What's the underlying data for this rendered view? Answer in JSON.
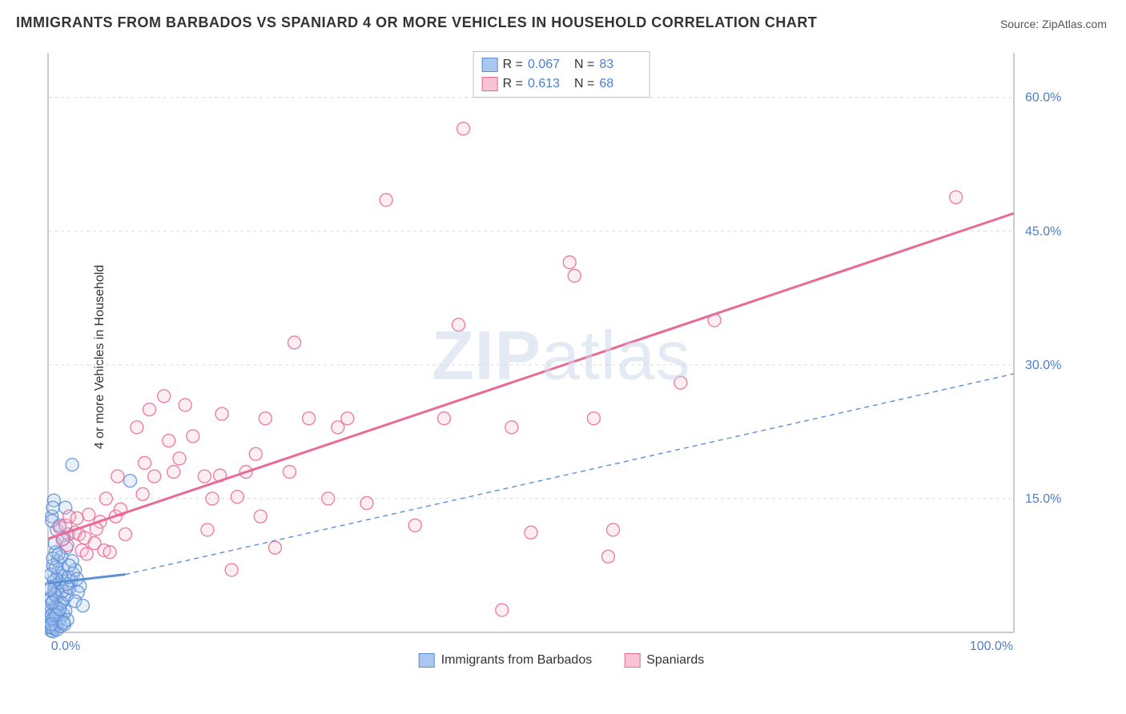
{
  "title": "IMMIGRANTS FROM BARBADOS VS SPANIARD 4 OR MORE VEHICLES IN HOUSEHOLD CORRELATION CHART",
  "source_prefix": "Source: ",
  "source_name": "ZipAtlas.com",
  "ylabel": "4 or more Vehicles in Household",
  "watermark_left": "ZIP",
  "watermark_right": "atlas",
  "chart": {
    "type": "scatter",
    "background_color": "#ffffff",
    "grid_color": "#dcdcdc",
    "axis_color": "#bbbbbb",
    "xlim": [
      0,
      100
    ],
    "ylim": [
      0,
      65
    ],
    "y_ticks": [
      15,
      30,
      45,
      60
    ],
    "y_tick_labels": [
      "15.0%",
      "30.0%",
      "45.0%",
      "60.0%"
    ],
    "x_ticks": [
      0,
      100
    ],
    "x_tick_labels": [
      "0.0%",
      "100.0%"
    ],
    "y_tick_color": "#4d7fc9",
    "x_tick_color": "#4d7fc9",
    "tick_fontsize": 16,
    "marker_radius": 8,
    "marker_fill_opacity": 0.28,
    "marker_stroke_width": 1.4,
    "line_width": 3,
    "dash_pattern": "6 5",
    "series": [
      {
        "name": "Immigrants from Barbados",
        "color": "#5e8fd6",
        "fill": "#a9c7ef",
        "R": "0.067",
        "N": "83",
        "trend_solid": {
          "x1": 0,
          "y1": 5.5,
          "x2": 8,
          "y2": 6.5
        },
        "trend_dashed_ext": {
          "x1": 8,
          "y1": 6.5,
          "x2": 100,
          "y2": 29.0
        },
        "points": [
          [
            0.3,
            0.2
          ],
          [
            0.4,
            0.5
          ],
          [
            0.5,
            1.0
          ],
          [
            0.6,
            1.4
          ],
          [
            0.3,
            1.8
          ],
          [
            0.7,
            2.2
          ],
          [
            0.4,
            2.6
          ],
          [
            0.8,
            3.0
          ],
          [
            0.5,
            3.5
          ],
          [
            0.9,
            4.0
          ],
          [
            0.6,
            4.4
          ],
          [
            1.0,
            4.8
          ],
          [
            0.7,
            5.2
          ],
          [
            1.2,
            5.6
          ],
          [
            0.9,
            6.0
          ],
          [
            1.4,
            6.3
          ],
          [
            1.0,
            6.7
          ],
          [
            1.5,
            7.1
          ],
          [
            0.8,
            0.8
          ],
          [
            1.1,
            1.2
          ],
          [
            1.3,
            1.6
          ],
          [
            0.6,
            0.4
          ],
          [
            1.6,
            2.0
          ],
          [
            1.8,
            2.4
          ],
          [
            1.2,
            3.2
          ],
          [
            1.7,
            3.8
          ],
          [
            2.0,
            4.2
          ],
          [
            1.5,
            4.6
          ],
          [
            2.2,
            5.0
          ],
          [
            1.9,
            5.4
          ],
          [
            2.4,
            5.8
          ],
          [
            2.1,
            6.2
          ],
          [
            2.6,
            6.6
          ],
          [
            2.8,
            7.0
          ],
          [
            0.5,
            7.5
          ],
          [
            1.0,
            8.0
          ],
          [
            1.4,
            8.5
          ],
          [
            0.8,
            9.0
          ],
          [
            1.9,
            9.5
          ],
          [
            0.7,
            10.0
          ],
          [
            1.6,
            10.5
          ],
          [
            2.1,
            11.0
          ],
          [
            0.9,
            11.5
          ],
          [
            1.2,
            12.0
          ],
          [
            2.5,
            8.0
          ],
          [
            0.4,
            13.0
          ],
          [
            1.8,
            14.0
          ],
          [
            0.6,
            14.8
          ],
          [
            2.2,
            7.5
          ],
          [
            3.0,
            6.0
          ],
          [
            3.3,
            5.2
          ],
          [
            3.1,
            4.5
          ],
          [
            2.8,
            3.5
          ],
          [
            3.6,
            3.0
          ],
          [
            0.5,
            0.1
          ],
          [
            0.2,
            0.6
          ],
          [
            0.9,
            0.3
          ],
          [
            1.3,
            0.7
          ],
          [
            1.7,
            0.9
          ],
          [
            0.4,
            2.0
          ],
          [
            2.0,
            1.4
          ],
          [
            0.2,
            5.0
          ],
          [
            0.6,
            5.8
          ],
          [
            0.3,
            6.5
          ],
          [
            0.8,
            7.3
          ],
          [
            0.5,
            8.3
          ],
          [
            1.1,
            8.8
          ],
          [
            0.9,
            2.8
          ],
          [
            0.3,
            3.8
          ],
          [
            1.4,
            3.3
          ],
          [
            0.7,
            4.2
          ],
          [
            0.2,
            4.8
          ],
          [
            1.0,
            2.3
          ],
          [
            0.5,
            1.5
          ],
          [
            0.8,
            1.9
          ],
          [
            1.2,
            2.6
          ],
          [
            0.3,
            0.9
          ],
          [
            1.6,
            1.1
          ],
          [
            0.4,
            3.3
          ],
          [
            2.5,
            18.8
          ],
          [
            8.5,
            17.0
          ],
          [
            0.5,
            14.0
          ],
          [
            0.4,
            12.5
          ]
        ]
      },
      {
        "name": "Spaniards",
        "color": "#e86b94",
        "fill": "#f8c3d4",
        "R": "0.613",
        "N": "68",
        "trend_solid": {
          "x1": 0,
          "y1": 10.5,
          "x2": 100,
          "y2": 47.0
        },
        "trend_dashed_ext": null,
        "points": [
          [
            1.2,
            11.8
          ],
          [
            1.8,
            12.0
          ],
          [
            2.2,
            13.0
          ],
          [
            2.8,
            11.2
          ],
          [
            3.2,
            11.0
          ],
          [
            3.8,
            10.6
          ],
          [
            4.2,
            13.2
          ],
          [
            4.8,
            10.0
          ],
          [
            5.4,
            12.4
          ],
          [
            3.0,
            12.8
          ],
          [
            5.0,
            11.6
          ],
          [
            5.8,
            9.2
          ],
          [
            6.4,
            9.0
          ],
          [
            3.5,
            9.2
          ],
          [
            7.0,
            13.0
          ],
          [
            2.0,
            9.8
          ],
          [
            1.5,
            10.4
          ],
          [
            6.0,
            15.0
          ],
          [
            7.5,
            13.8
          ],
          [
            7.2,
            17.5
          ],
          [
            8.0,
            11.0
          ],
          [
            4.0,
            8.8
          ],
          [
            9.2,
            23.0
          ],
          [
            10.0,
            19.0
          ],
          [
            10.5,
            25.0
          ],
          [
            11.0,
            17.5
          ],
          [
            12.5,
            21.5
          ],
          [
            9.8,
            15.5
          ],
          [
            12.0,
            26.5
          ],
          [
            13.0,
            18.0
          ],
          [
            13.6,
            19.5
          ],
          [
            14.2,
            25.5
          ],
          [
            15.0,
            22.0
          ],
          [
            16.2,
            17.5
          ],
          [
            17.0,
            15.0
          ],
          [
            16.5,
            11.5
          ],
          [
            17.8,
            17.6
          ],
          [
            18.0,
            24.5
          ],
          [
            19.0,
            7.0
          ],
          [
            19.6,
            15.2
          ],
          [
            20.5,
            18.0
          ],
          [
            21.5,
            20.0
          ],
          [
            22.5,
            24.0
          ],
          [
            23.5,
            9.5
          ],
          [
            25.0,
            18.0
          ],
          [
            25.5,
            32.5
          ],
          [
            27.0,
            24.0
          ],
          [
            30.0,
            23.0
          ],
          [
            31.0,
            24.0
          ],
          [
            33.0,
            14.5
          ],
          [
            35.0,
            48.5
          ],
          [
            38.0,
            12.0
          ],
          [
            41.0,
            24.0
          ],
          [
            42.5,
            34.5
          ],
          [
            43.0,
            56.5
          ],
          [
            47.0,
            2.5
          ],
          [
            48.0,
            23.0
          ],
          [
            50.0,
            11.2
          ],
          [
            54.0,
            41.5
          ],
          [
            54.5,
            40.0
          ],
          [
            56.5,
            24.0
          ],
          [
            58.0,
            8.5
          ],
          [
            58.5,
            11.5
          ],
          [
            65.5,
            28.0
          ],
          [
            69.0,
            35.0
          ],
          [
            94.0,
            48.8
          ],
          [
            22.0,
            13.0
          ],
          [
            29.0,
            15.0
          ]
        ]
      }
    ]
  },
  "stat_legend": {
    "r_label": "R =",
    "n_label": "N ="
  },
  "bottom_legend": {
    "items": [
      "Immigrants from Barbados",
      "Spaniards"
    ]
  }
}
